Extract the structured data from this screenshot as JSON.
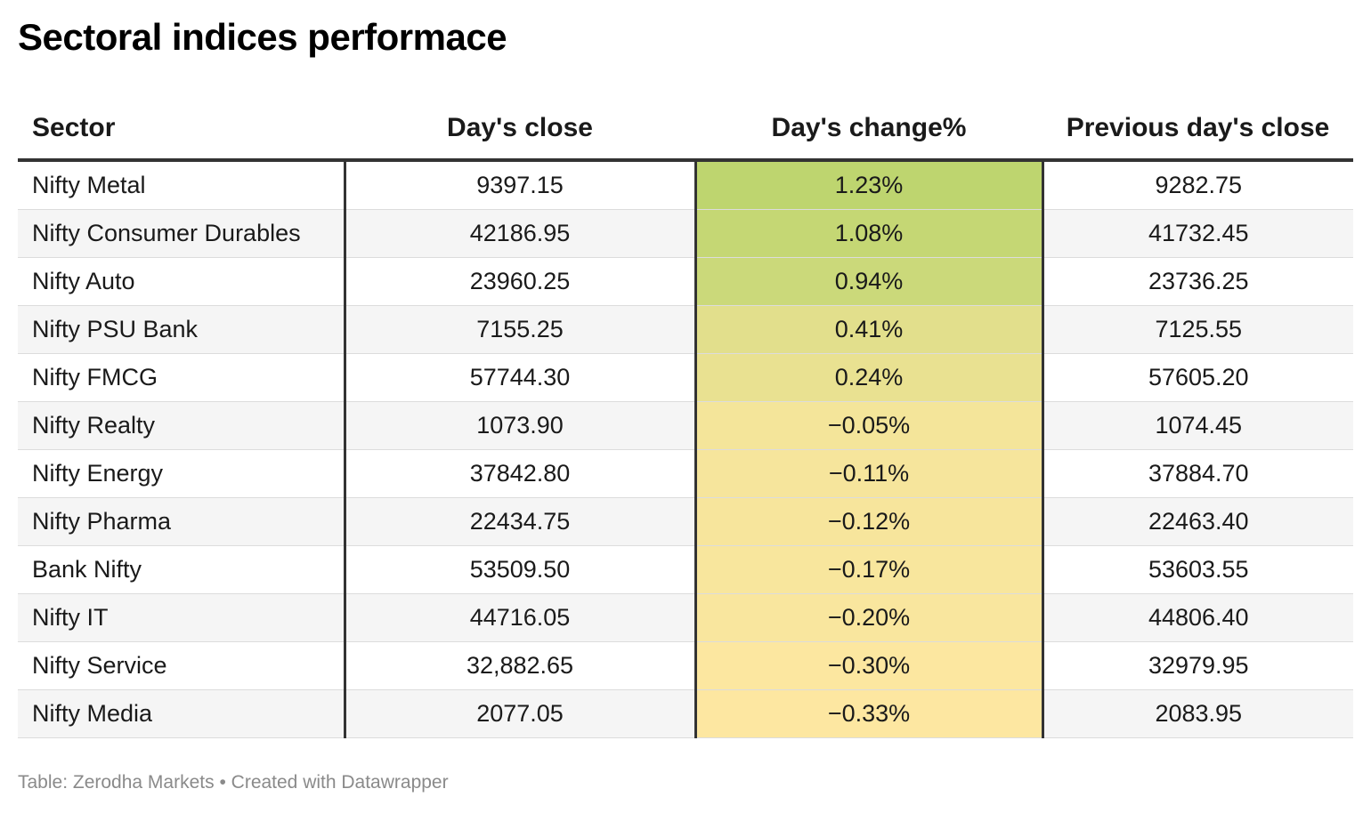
{
  "title": "Sectoral indices performace",
  "footer": {
    "source": "Table: Zerodha Markets",
    "separator": "•",
    "credit": "Created with Datawrapper"
  },
  "colors": {
    "highest": "#bed56f",
    "lowest": "#fde7a1",
    "header_rule": "#333333",
    "row_alt": "#f5f5f5"
  },
  "chart_data": {
    "type": "table",
    "columns": [
      "Sector",
      "Day's close",
      "Day's change%",
      "Previous day's close"
    ],
    "rows": [
      [
        "Nifty Metal",
        "9397.15",
        "1.23%",
        "9282.75"
      ],
      [
        "Nifty Consumer Durables",
        "42186.95",
        "1.08%",
        "41732.45"
      ],
      [
        "Nifty Auto",
        "23960.25",
        "0.94%",
        "23736.25"
      ],
      [
        "Nifty PSU Bank",
        "7155.25",
        "0.41%",
        "7125.55"
      ],
      [
        "Nifty FMCG",
        "57744.30",
        "0.24%",
        "57605.20"
      ],
      [
        "Nifty Realty",
        "1073.90",
        "−0.05%",
        "1074.45"
      ],
      [
        "Nifty Energy",
        "37842.80",
        "−0.11%",
        "37884.70"
      ],
      [
        "Nifty Pharma",
        "22434.75",
        "−0.12%",
        "22463.40"
      ],
      [
        "Bank Nifty",
        "53509.50",
        "−0.17%",
        "53603.55"
      ],
      [
        "Nifty IT",
        "44716.05",
        "−0.20%",
        "44806.40"
      ],
      [
        "Nifty Service",
        "32,882.65",
        "−0.30%",
        "32979.95"
      ],
      [
        "Nifty Media",
        "2077.05",
        "−0.33%",
        "2083.95"
      ]
    ],
    "change_values": [
      1.23,
      1.08,
      0.94,
      0.41,
      0.24,
      -0.05,
      -0.11,
      -0.12,
      -0.17,
      -0.2,
      -0.3,
      -0.33
    ]
  }
}
